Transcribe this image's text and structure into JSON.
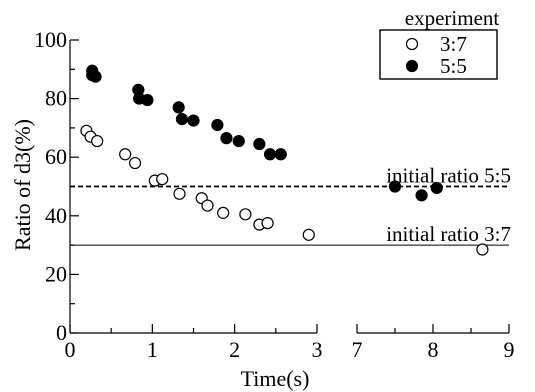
{
  "chart_data": {
    "type": "scatter",
    "xlabel": "Time(s)",
    "ylabel": "Ratio of d3(%)",
    "ylim": [
      0,
      100
    ],
    "x_segments": [
      {
        "range": [
          0,
          3
        ],
        "ticks": [
          0,
          1,
          2,
          3
        ]
      },
      {
        "range": [
          7,
          9
        ],
        "ticks": [
          7,
          8,
          9
        ]
      }
    ],
    "x_break": true,
    "y_ticks": [
      0,
      20,
      40,
      60,
      80,
      100
    ],
    "tick_labels_y": [
      "0",
      "20",
      "40",
      "60",
      "80",
      "100"
    ],
    "tick_labels_x": [
      "0",
      "1",
      "2",
      "3",
      "7",
      "8",
      "9"
    ],
    "grid": false,
    "legend": {
      "title": "experiment",
      "placement": "top-right",
      "entries": [
        "3:7",
        "5:5"
      ]
    },
    "series": [
      {
        "name": "3:7",
        "marker": "open-circle",
        "points": [
          {
            "x": 0.2,
            "y": 69
          },
          {
            "x": 0.25,
            "y": 67
          },
          {
            "x": 0.33,
            "y": 65.5
          },
          {
            "x": 0.67,
            "y": 61
          },
          {
            "x": 0.79,
            "y": 58
          },
          {
            "x": 1.03,
            "y": 52
          },
          {
            "x": 1.12,
            "y": 52.5
          },
          {
            "x": 1.33,
            "y": 47.5
          },
          {
            "x": 1.6,
            "y": 46
          },
          {
            "x": 1.67,
            "y": 43.5
          },
          {
            "x": 1.86,
            "y": 41
          },
          {
            "x": 2.13,
            "y": 40.5
          },
          {
            "x": 2.3,
            "y": 37
          },
          {
            "x": 2.4,
            "y": 37.5
          },
          {
            "x": 2.9,
            "y": 33.5
          },
          {
            "x": 8.65,
            "y": 28.5
          }
        ]
      },
      {
        "name": "5:5",
        "marker": "filled-circle",
        "points": [
          {
            "x": 0.27,
            "y": 89.5
          },
          {
            "x": 0.27,
            "y": 88
          },
          {
            "x": 0.31,
            "y": 87.5
          },
          {
            "x": 0.83,
            "y": 83
          },
          {
            "x": 0.84,
            "y": 80
          },
          {
            "x": 0.94,
            "y": 79.5
          },
          {
            "x": 1.32,
            "y": 77
          },
          {
            "x": 1.36,
            "y": 73
          },
          {
            "x": 1.5,
            "y": 72.5
          },
          {
            "x": 1.79,
            "y": 71
          },
          {
            "x": 1.9,
            "y": 66.5
          },
          {
            "x": 2.05,
            "y": 65.5
          },
          {
            "x": 2.3,
            "y": 64.5
          },
          {
            "x": 2.43,
            "y": 61
          },
          {
            "x": 2.56,
            "y": 61
          },
          {
            "x": 7.5,
            "y": 50
          },
          {
            "x": 7.85,
            "y": 47
          },
          {
            "x": 8.05,
            "y": 49.5
          }
        ]
      }
    ],
    "reference_lines": [
      {
        "y": 50,
        "label": "initial ratio 5:5",
        "style": "dashed"
      },
      {
        "y": 30,
        "label": "initial ratio 3:7",
        "style": "solid"
      }
    ]
  }
}
